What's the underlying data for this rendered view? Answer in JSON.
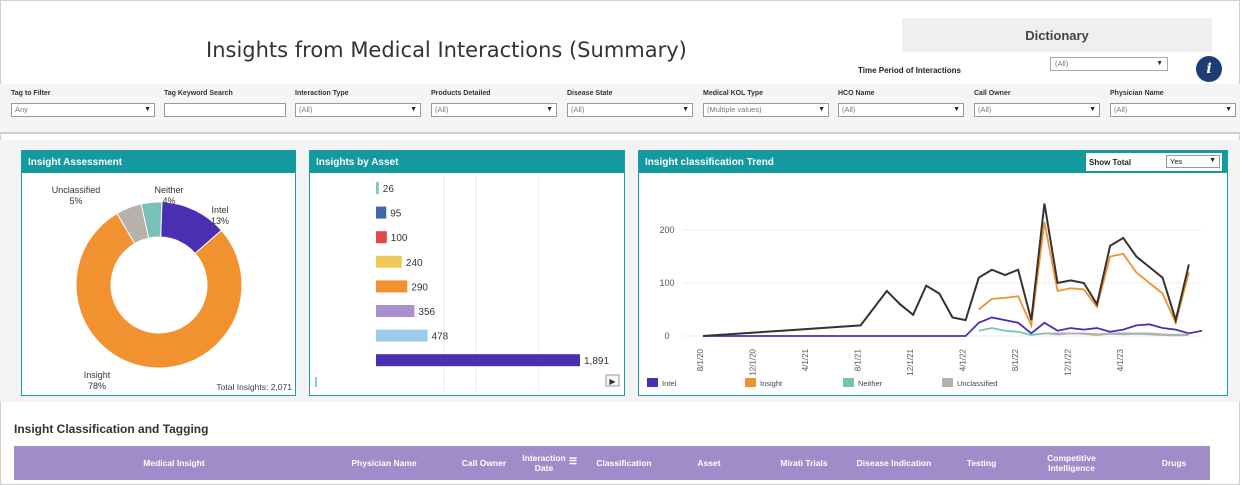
{
  "header": {
    "title": "Insights from Medical Interactions (Summary)",
    "dictionary_label": "Dictionary",
    "time_period_label": "Time Period of Interactions",
    "time_period_value": "(All)"
  },
  "filters": [
    {
      "label": "Tag to Filter",
      "value": "Any"
    },
    {
      "label": "Tag Keyword Search",
      "value": ""
    },
    {
      "label": "Interaction Type",
      "value": "(All)"
    },
    {
      "label": "Products Detailed",
      "value": "(All)"
    },
    {
      "label": "Disease State",
      "value": "(All)"
    },
    {
      "label": "Medical KOL Type",
      "value": "(Multiple values)"
    },
    {
      "label": "HCO Name",
      "value": "(All)"
    },
    {
      "label": "Call Owner",
      "value": "(All)"
    },
    {
      "label": "Physician Name",
      "value": "(All)"
    }
  ],
  "insight_assessment": {
    "title": "Insight Assessment",
    "total_label": "Total Insights: 2,071",
    "slices": [
      {
        "name": "Intel",
        "pct_label": "13%",
        "value": 13,
        "color": "#4a2fb2"
      },
      {
        "name": "Insight",
        "pct_label": "78%",
        "value": 78,
        "color": "#f2912f"
      },
      {
        "name": "Unclassified",
        "pct_label": "5%",
        "value": 5,
        "color": "#b8b0aa"
      },
      {
        "name": "Neither",
        "pct_label": "4%",
        "value": 4,
        "color": "#78c1b6"
      }
    ]
  },
  "insights_by_asset": {
    "title": "Insights by Asset",
    "bars": [
      {
        "value": 26,
        "label": "26",
        "color": "#7fc6b8"
      },
      {
        "value": 95,
        "label": "95",
        "color": "#3f6aa5"
      },
      {
        "value": 100,
        "label": "100",
        "color": "#e0484b"
      },
      {
        "value": 240,
        "label": "240",
        "color": "#f1c85a"
      },
      {
        "value": 290,
        "label": "290",
        "color": "#f2912f"
      },
      {
        "value": 356,
        "label": "356",
        "color": "#a98ed0"
      },
      {
        "value": 478,
        "label": "478",
        "color": "#9fcbea"
      },
      {
        "value": 1891,
        "label": "1,891",
        "color": "#4a2fb2"
      }
    ],
    "max": 1891
  },
  "trend": {
    "title": "Insight classification Trend",
    "show_total_label": "Show Total",
    "show_total_value": "Yes"
  },
  "chart_data": {
    "type": "line",
    "title": "Insight classification Trend",
    "x_ticks": [
      "8/1/20",
      "12/1/20",
      "4/1/21",
      "8/1/21",
      "12/1/21",
      "4/1/22",
      "8/1/22",
      "12/1/22",
      "4/1/23"
    ],
    "y_ticks": [
      "0",
      "100",
      "200"
    ],
    "ylim": [
      0,
      250
    ],
    "legend_placement": "bottom",
    "series": [
      {
        "name": "Intel",
        "color": "#4a2fb2",
        "values": [
          [
            8,
            0
          ],
          [
            9,
            0
          ],
          [
            10,
            0
          ],
          [
            11,
            0
          ],
          [
            12,
            0
          ],
          [
            13,
            0
          ],
          [
            14,
            0
          ],
          [
            15,
            0
          ],
          [
            16,
            0
          ],
          [
            17,
            0
          ],
          [
            18,
            0
          ],
          [
            19,
            0
          ],
          [
            20,
            0
          ],
          [
            21,
            0
          ],
          [
            22,
            0
          ],
          [
            23,
            0
          ],
          [
            24,
            0
          ],
          [
            25,
            0
          ],
          [
            26,
            0
          ],
          [
            27,
            0
          ],
          [
            28,
            0
          ],
          [
            29,
            25
          ],
          [
            30,
            35
          ],
          [
            31,
            30
          ],
          [
            32,
            25
          ],
          [
            33,
            5
          ],
          [
            34,
            25
          ],
          [
            35,
            10
          ],
          [
            36,
            15
          ],
          [
            37,
            12
          ],
          [
            38,
            15
          ],
          [
            39,
            8
          ],
          [
            40,
            12
          ],
          [
            41,
            20
          ],
          [
            42,
            22
          ],
          [
            43,
            15
          ],
          [
            44,
            12
          ],
          [
            45,
            5
          ],
          [
            46,
            10
          ]
        ]
      },
      {
        "name": "Insight",
        "color": "#f2912f",
        "values": [
          [
            29,
            50
          ],
          [
            30,
            70
          ],
          [
            31,
            72
          ],
          [
            32,
            75
          ],
          [
            33,
            20
          ],
          [
            34,
            215
          ],
          [
            35,
            85
          ],
          [
            36,
            90
          ],
          [
            37,
            88
          ],
          [
            38,
            55
          ],
          [
            39,
            150
          ],
          [
            40,
            155
          ],
          [
            41,
            120
          ],
          [
            42,
            100
          ],
          [
            43,
            80
          ],
          [
            44,
            25
          ],
          [
            45,
            120
          ]
        ]
      },
      {
        "name": "Neither",
        "color": "#78c1b6",
        "values": [
          [
            29,
            10
          ],
          [
            30,
            15
          ],
          [
            31,
            10
          ],
          [
            32,
            8
          ],
          [
            33,
            2
          ],
          [
            34,
            5
          ],
          [
            35,
            5
          ],
          [
            36,
            5
          ],
          [
            37,
            5
          ],
          [
            38,
            3
          ],
          [
            39,
            5
          ],
          [
            40,
            5
          ],
          [
            41,
            5
          ],
          [
            42,
            5
          ],
          [
            43,
            3
          ],
          [
            44,
            2
          ],
          [
            45,
            3
          ]
        ]
      },
      {
        "name": "Unclassified",
        "color": "#b8b0aa",
        "values": [
          [
            34,
            5
          ],
          [
            35,
            3
          ],
          [
            36,
            5
          ],
          [
            37,
            4
          ],
          [
            38,
            2
          ],
          [
            39,
            4
          ],
          [
            40,
            3
          ],
          [
            41,
            4
          ],
          [
            42,
            3
          ],
          [
            43,
            2
          ],
          [
            44,
            1
          ],
          [
            45,
            2
          ]
        ]
      },
      {
        "name": "Total",
        "color": "#333333",
        "values": [
          [
            8,
            0
          ],
          [
            14,
            10
          ],
          [
            20,
            20
          ],
          [
            22,
            85
          ],
          [
            23,
            60
          ],
          [
            24,
            40
          ],
          [
            25,
            95
          ],
          [
            26,
            80
          ],
          [
            27,
            35
          ],
          [
            28,
            30
          ],
          [
            29,
            110
          ],
          [
            30,
            125
          ],
          [
            31,
            115
          ],
          [
            32,
            125
          ],
          [
            33,
            30
          ],
          [
            34,
            250
          ],
          [
            35,
            100
          ],
          [
            36,
            105
          ],
          [
            37,
            100
          ],
          [
            38,
            60
          ],
          [
            39,
            170
          ],
          [
            40,
            185
          ],
          [
            41,
            150
          ],
          [
            42,
            130
          ],
          [
            43,
            110
          ],
          [
            44,
            30
          ],
          [
            45,
            135
          ]
        ]
      }
    ]
  },
  "table": {
    "section_title": "Insight Classification and Tagging",
    "columns": [
      "Medical Insight",
      "Physician Name",
      "Call Owner",
      "Interaction Date",
      "Classification",
      "Asset",
      "Mirati Trials",
      "Disease Indication",
      "Testing",
      "Competitive Intelligence",
      "Drugs"
    ]
  }
}
